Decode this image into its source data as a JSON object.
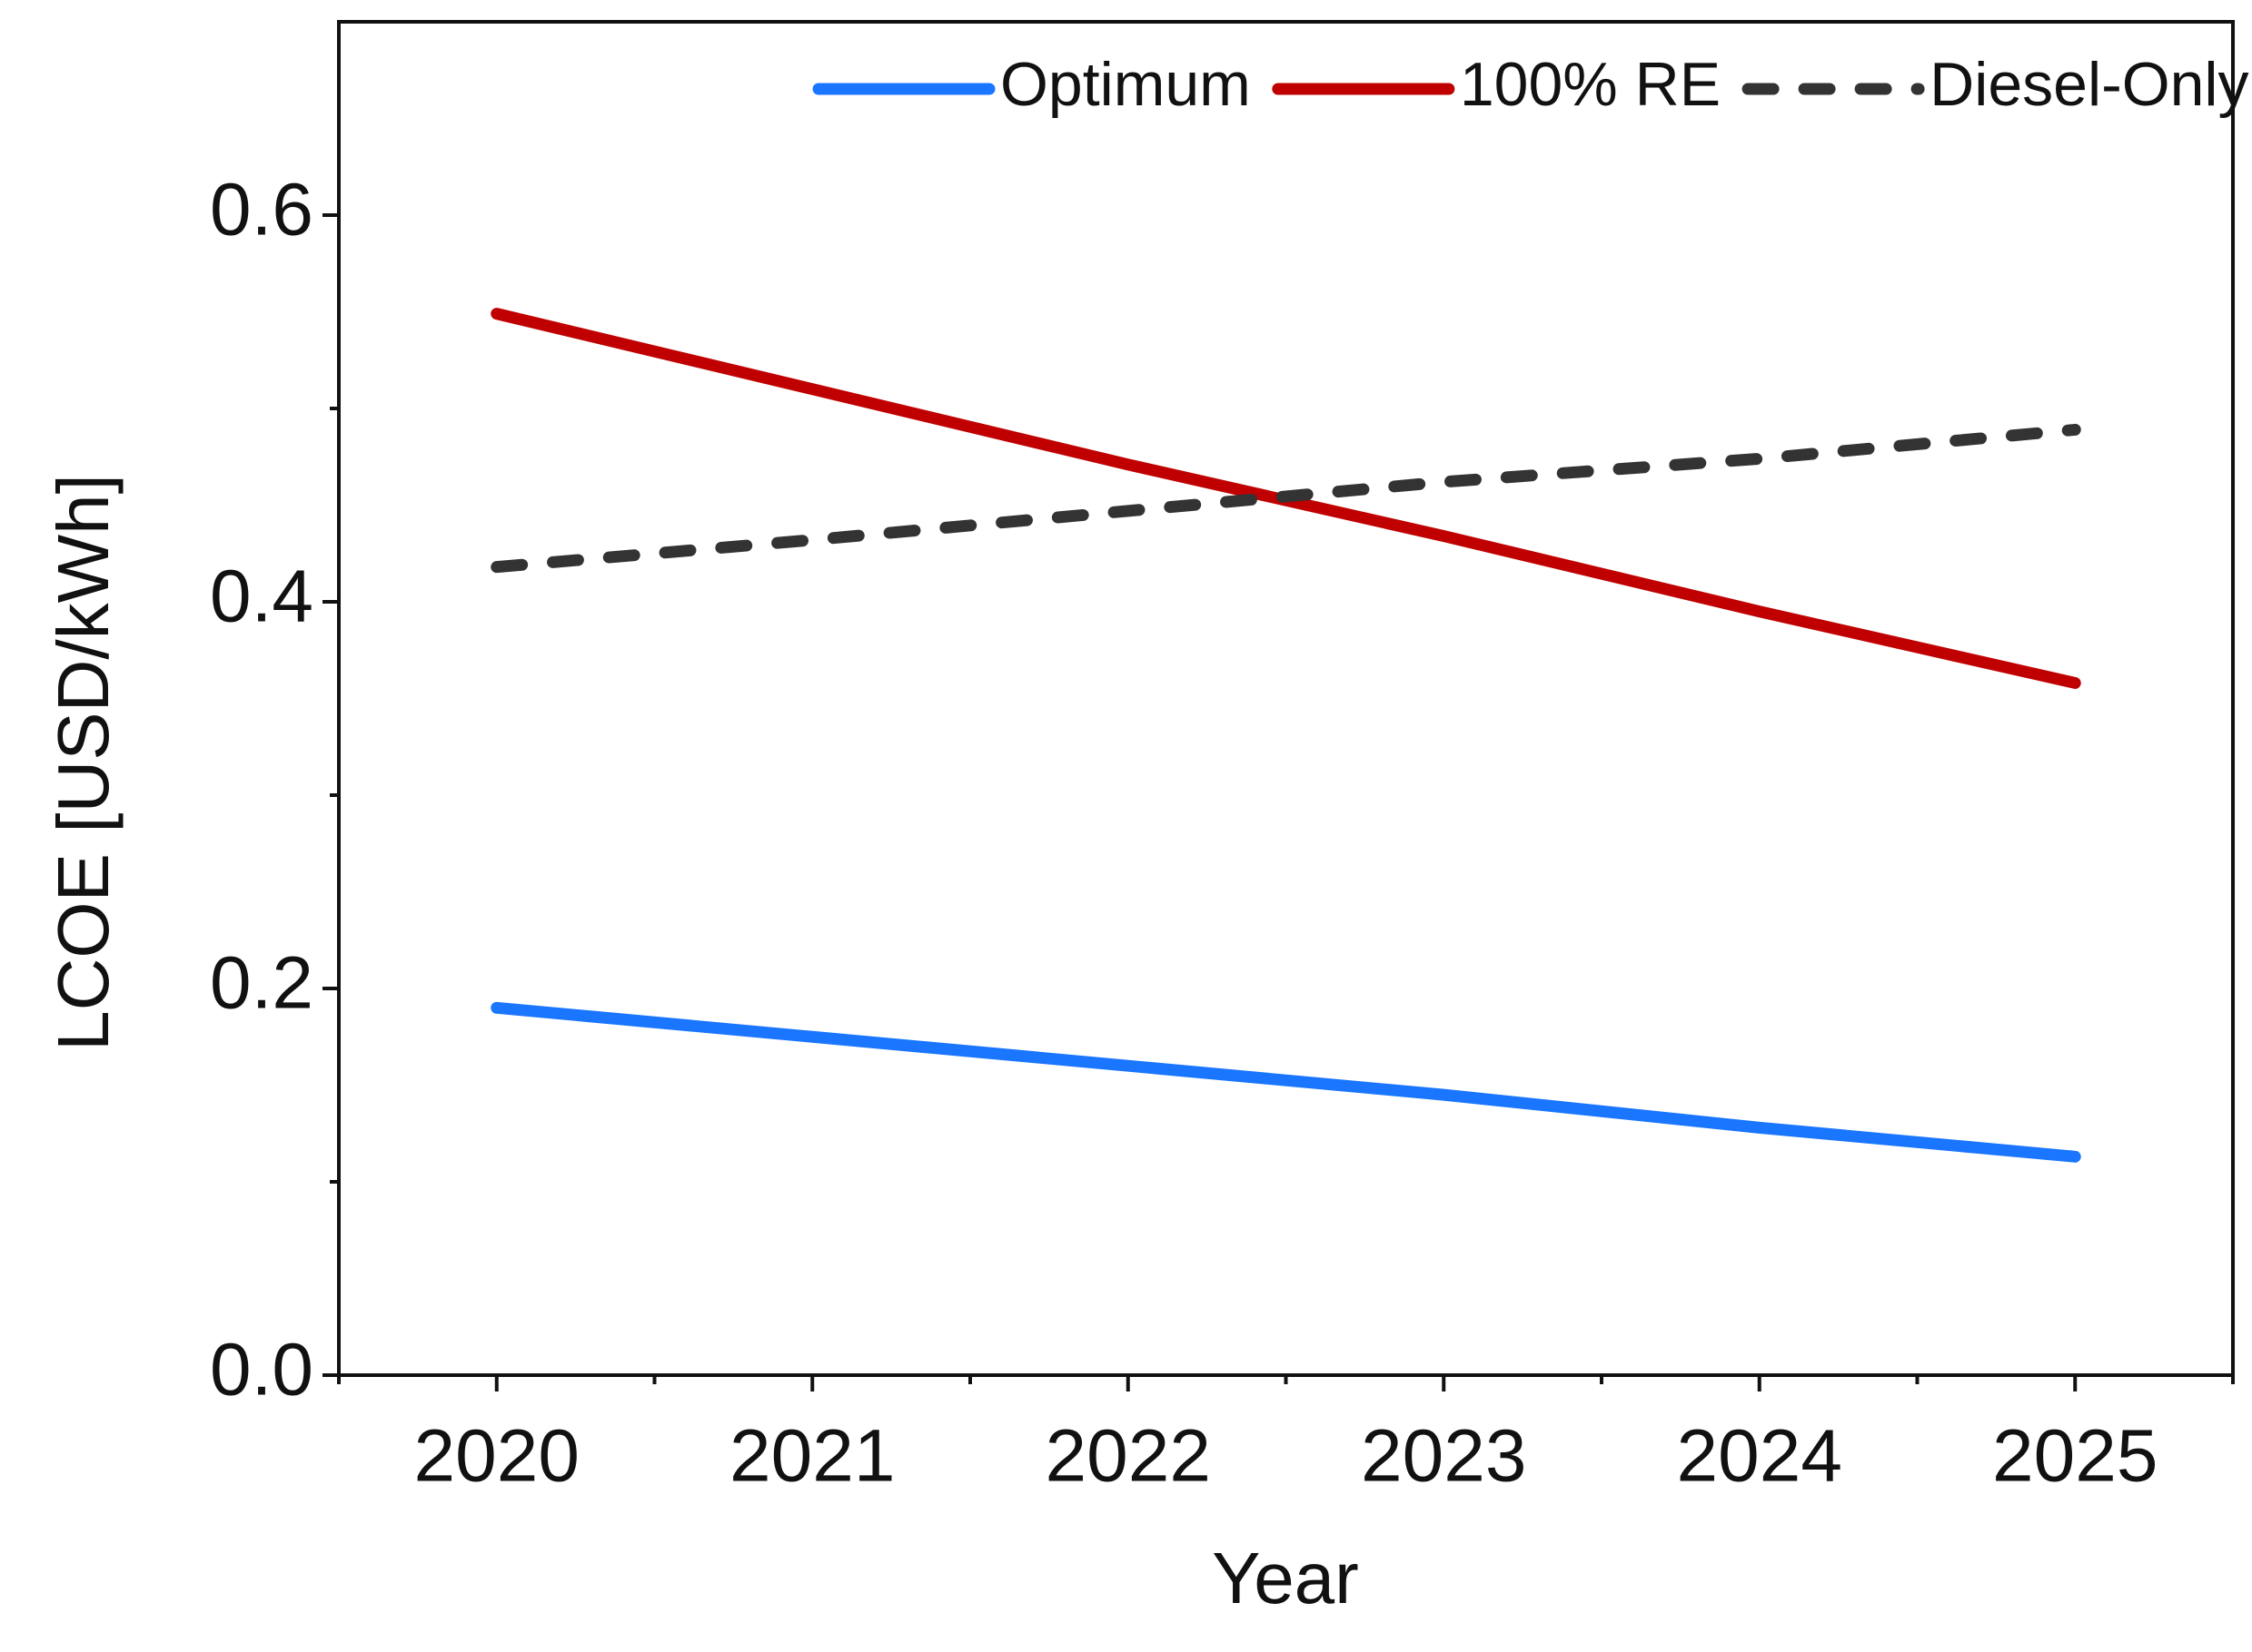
{
  "chart_data": {
    "type": "line",
    "x_label": "Year",
    "y_label": "LCOE [USD/kWh]",
    "x": [
      2020,
      2021,
      2022,
      2023,
      2024,
      2025
    ],
    "series": [
      {
        "name": "Optimum",
        "color": "#1a75ff",
        "dash": false,
        "values": [
          0.19,
          0.175,
          0.16,
          0.145,
          0.128,
          0.113
        ]
      },
      {
        "name": "100% RE",
        "color": "#c00000",
        "dash": false,
        "values": [
          0.549,
          0.51,
          0.471,
          0.434,
          0.395,
          0.358
        ]
      },
      {
        "name": "Diesel-Only",
        "color": "#333333",
        "dash": true,
        "values": [
          0.418,
          0.432,
          0.447,
          0.462,
          0.474,
          0.489
        ]
      }
    ],
    "xlim": [
      2019.5,
      2025.5
    ],
    "xticks": [
      2020,
      2021,
      2022,
      2023,
      2024,
      2025
    ],
    "xminor": [
      2019.5,
      2020.5,
      2021.5,
      2022.5,
      2023.5,
      2024.5,
      2025.5
    ],
    "ylim": [
      0,
      0.7
    ],
    "yticks": [
      {
        "value": 0,
        "label": "0.0"
      },
      0.2,
      0.4,
      0.6
    ],
    "yminor": [
      0.1,
      0.3,
      0.5
    ],
    "grid": false,
    "legend": "top-right"
  }
}
